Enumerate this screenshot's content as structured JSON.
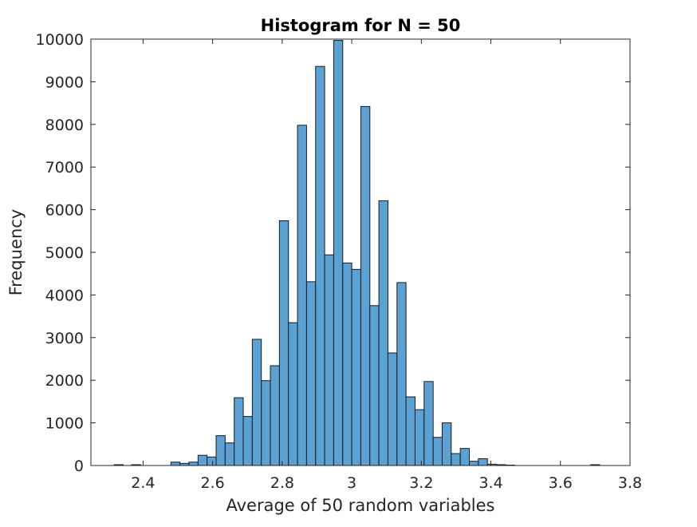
{
  "chart_data": {
    "type": "bar",
    "title": "Histogram for N = 50",
    "xlabel": "Average of 50 random variables",
    "ylabel": "Frequency",
    "xlim": [
      2.25,
      3.8
    ],
    "ylim": [
      0,
      10000
    ],
    "xticks": [
      2.4,
      2.6,
      2.8,
      3,
      3.2,
      3.4,
      3.6,
      3.8
    ],
    "xtick_labels": [
      "2.4",
      "2.6",
      "2.8",
      "3",
      "3.2",
      "3.4",
      "3.6",
      "3.8"
    ],
    "yticks": [
      0,
      1000,
      2000,
      3000,
      4000,
      5000,
      6000,
      7000,
      8000,
      9000,
      10000
    ],
    "ytick_labels": [
      "0",
      "1000",
      "2000",
      "3000",
      "4000",
      "5000",
      "6000",
      "7000",
      "8000",
      "9000",
      "10000"
    ],
    "bin_width": 0.026,
    "bin_start": 2.48,
    "counts": [
      80,
      50,
      80,
      240,
      200,
      700,
      530,
      1590,
      1150,
      2960,
      1990,
      2340,
      5740,
      3350,
      7980,
      4310,
      9360,
      4940,
      9970,
      4750,
      4600,
      8420,
      3750,
      6210,
      2640,
      4290,
      1610,
      1310,
      1970,
      660,
      1000,
      280,
      400,
      100,
      160,
      30,
      20,
      10
    ],
    "outlier_bins": [
      {
        "x": 2.33,
        "value": 5
      },
      {
        "x": 2.38,
        "value": 5
      },
      {
        "x": 3.7,
        "value": 5
      }
    ],
    "bar_color": "#5BA1D4",
    "edge_color": "#1A1A1A",
    "grid": false,
    "legend": "none"
  }
}
